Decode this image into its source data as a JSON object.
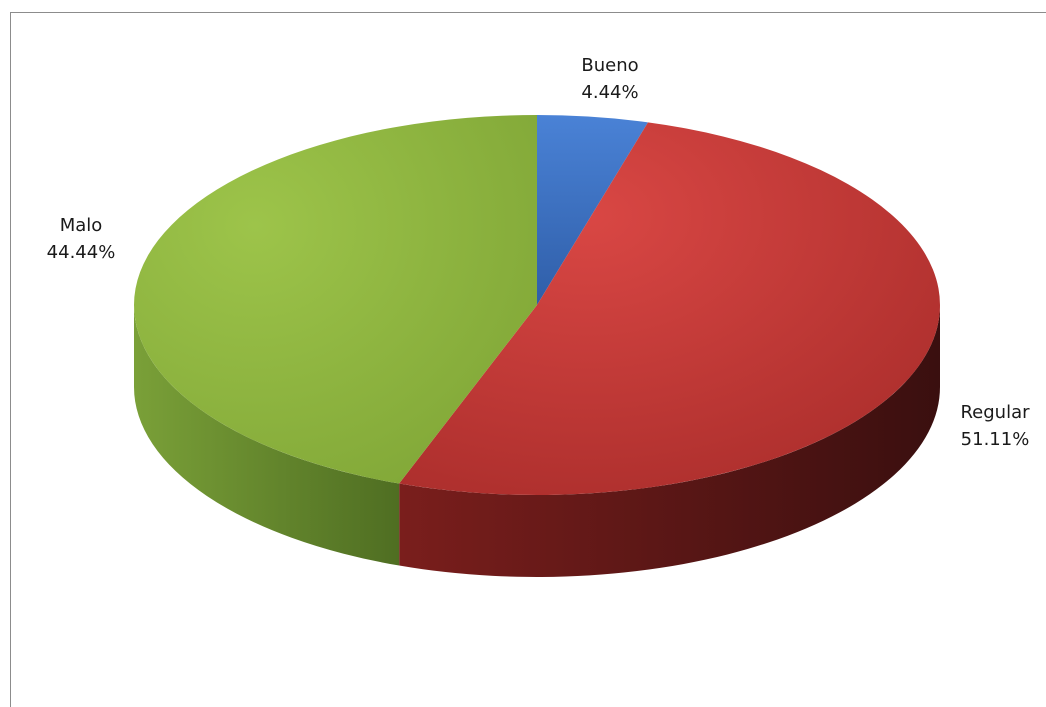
{
  "chart_data": {
    "type": "pie",
    "style": "3d",
    "title": "",
    "slices": [
      {
        "label": "Bueno",
        "value": 4.44,
        "value_label": "4.44%",
        "color": "#3a6fc4",
        "side_color": "#24467e"
      },
      {
        "label": "Regular",
        "value": 51.11,
        "value_label": "51.11%",
        "color": "#c93a38",
        "side_color": "#5e1514"
      },
      {
        "label": "Malo",
        "value": 44.44,
        "value_label": "44.44%",
        "color": "#8fb83f",
        "side_color": "#5d7d29"
      }
    ],
    "legend": "none"
  }
}
